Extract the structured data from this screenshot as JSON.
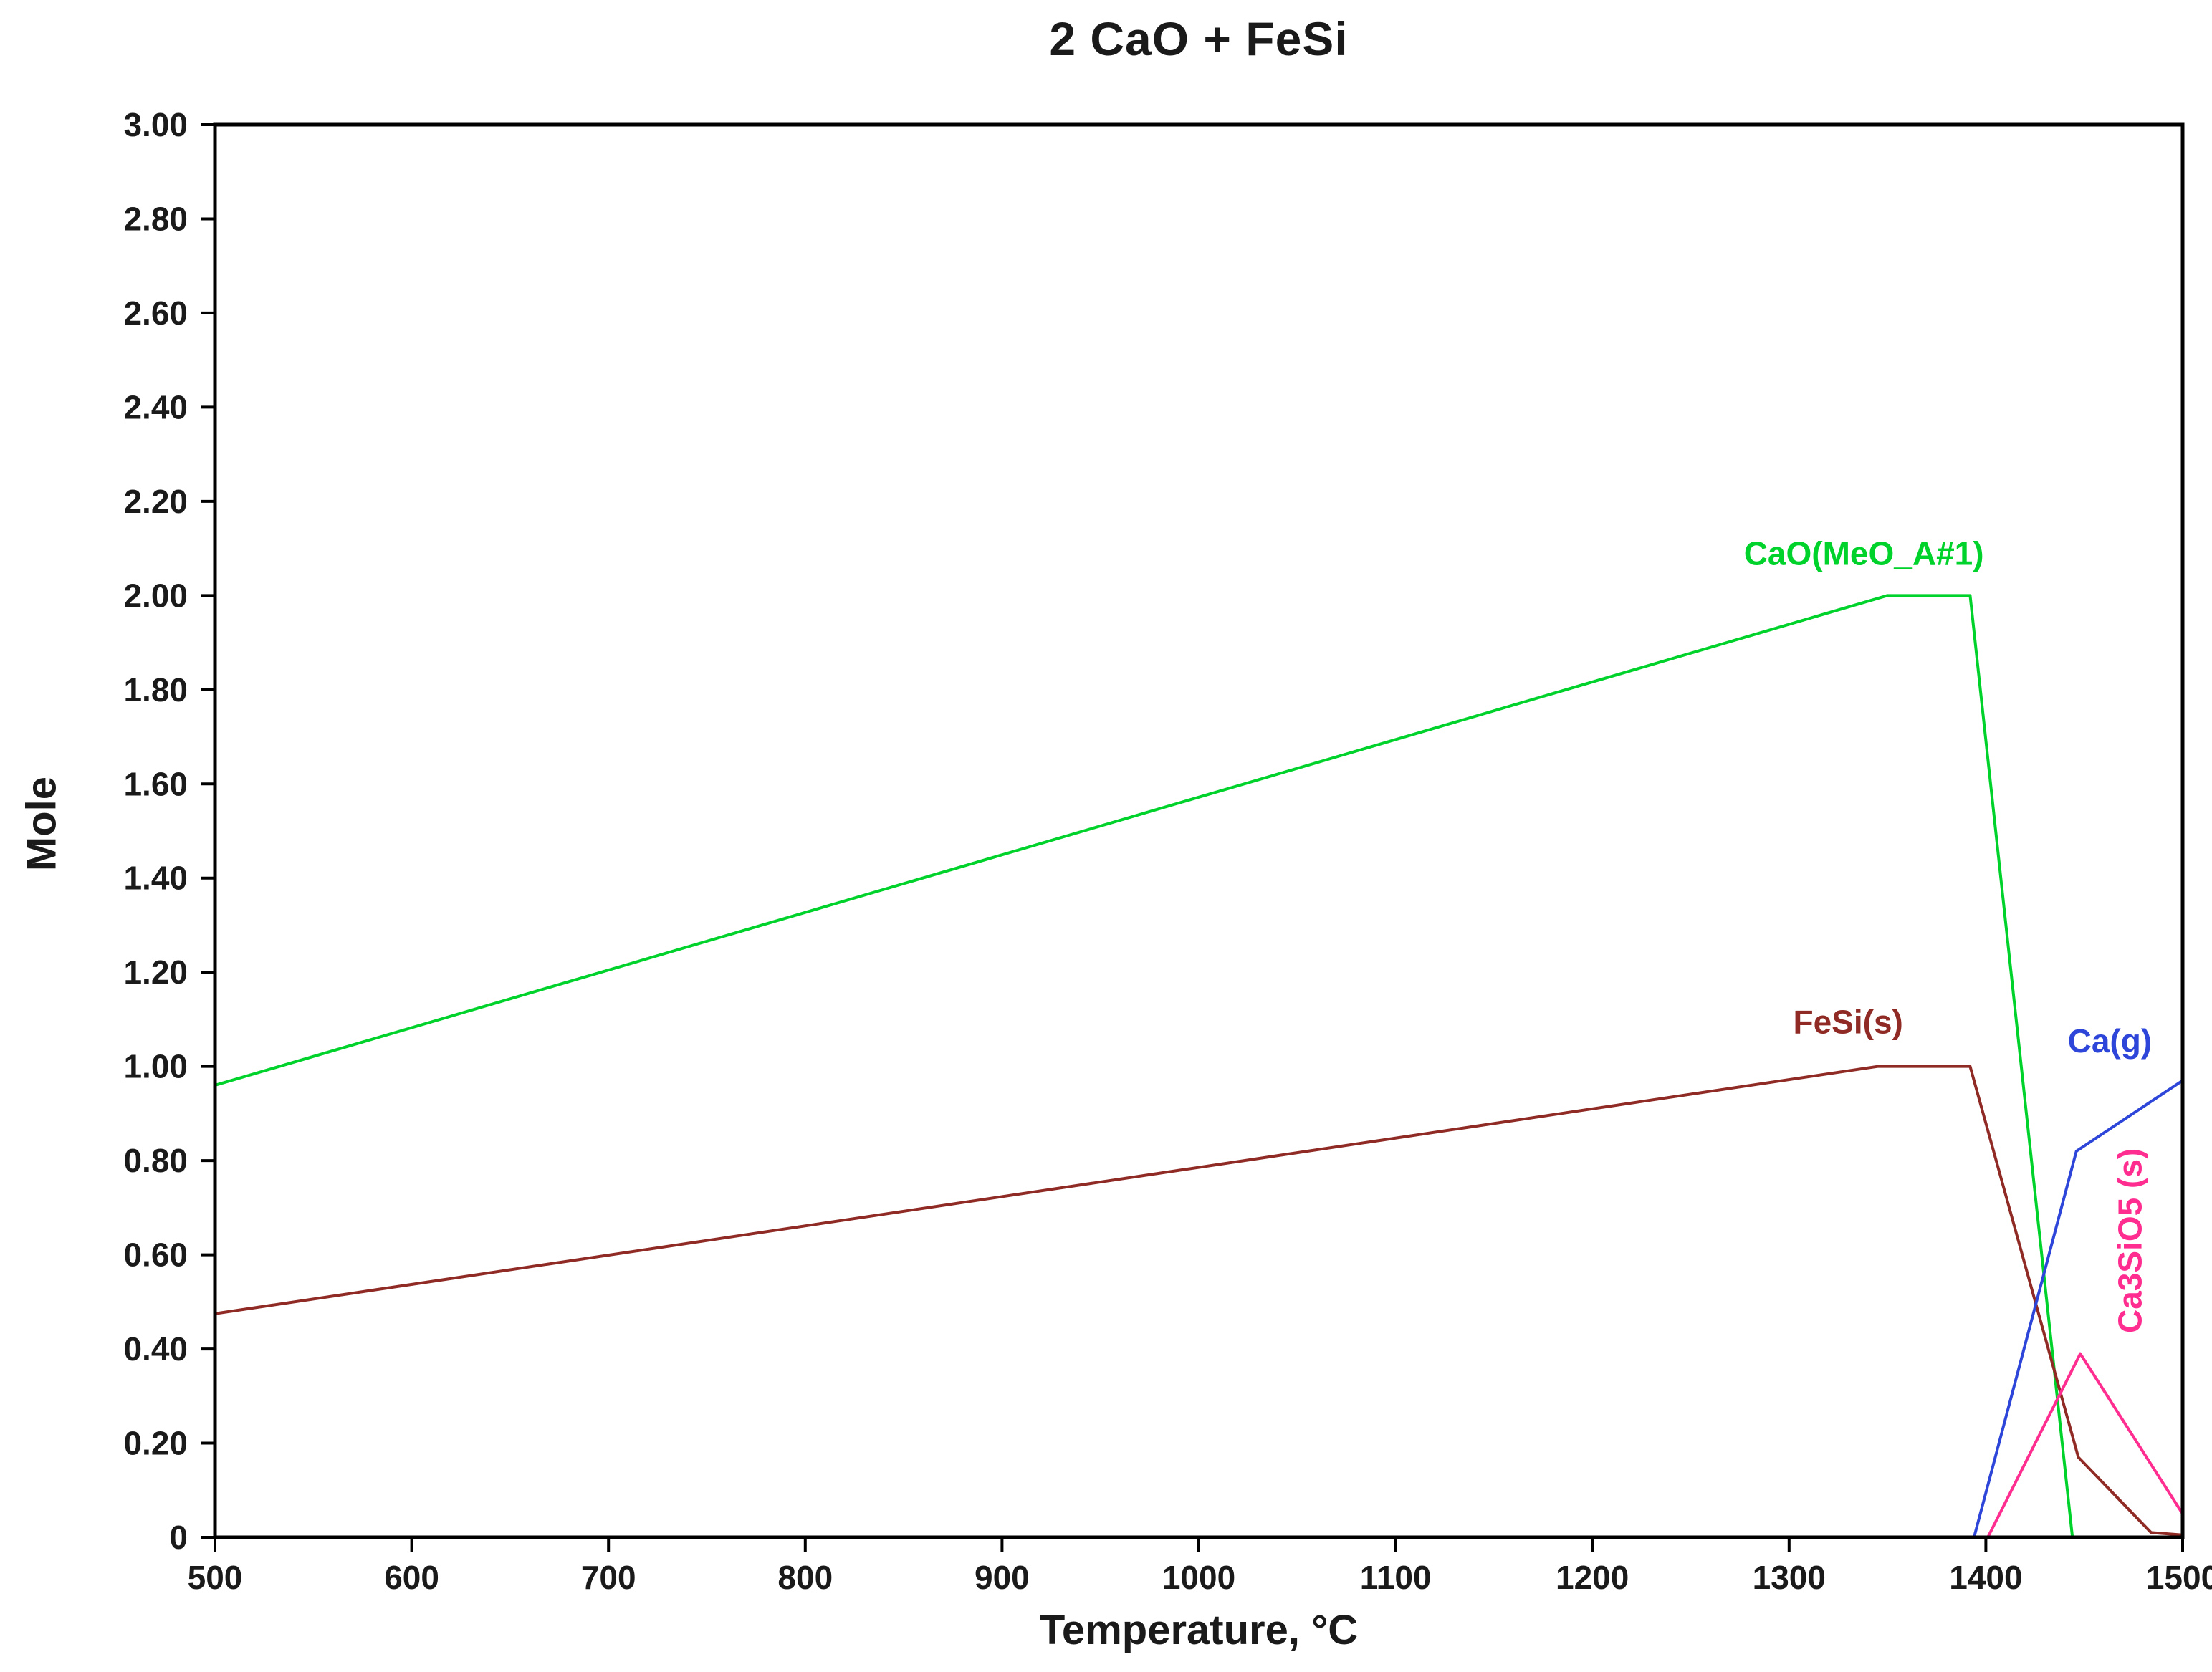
{
  "chart_data": {
    "type": "line",
    "title": "2 CaO + FeSi",
    "xlabel": "Temperature, °C",
    "ylabel": "Mole",
    "xlim": [
      500,
      1500
    ],
    "ylim": [
      0,
      3.0
    ],
    "grid": false,
    "legend": "inline-series-labels",
    "axis_color": "#000000",
    "tick_label_color": "#1a1a1a",
    "x_ticks": [
      500,
      600,
      700,
      800,
      900,
      1000,
      1100,
      1200,
      1300,
      1400,
      1500
    ],
    "x_tick_labels": [
      "500",
      "600",
      "700",
      "800",
      "900",
      "1000",
      "1100",
      "1200",
      "1300",
      "1400",
      "1500"
    ],
    "y_ticks": [
      0,
      0.2,
      0.4,
      0.6,
      0.8,
      1.0,
      1.2,
      1.4,
      1.6,
      1.8,
      2.0,
      2.2,
      2.4,
      2.6,
      2.8,
      3.0
    ],
    "y_tick_labels": [
      "0",
      "0.20",
      "0.40",
      "0.60",
      "0.80",
      "1.00",
      "1.20",
      "1.40",
      "1.60",
      "1.80",
      "2.00",
      "2.20",
      "2.40",
      "2.60",
      "2.80",
      "3.00"
    ],
    "series": [
      {
        "name": "CaO(MeO_A#1)",
        "color": "#00d22c",
        "points": [
          [
            500,
            0.96
          ],
          [
            1350,
            2.0
          ],
          [
            1392,
            2.0
          ],
          [
            1444,
            0.0
          ],
          [
            1500,
            0.0
          ]
        ],
        "label": {
          "text": "CaO(MeO_A#1)",
          "x": 1338,
          "y": 2.065,
          "rotate": 0,
          "anchor": "middle"
        }
      },
      {
        "name": "FeSi(s)",
        "color": "#8f2a25",
        "points": [
          [
            500,
            0.475
          ],
          [
            1345,
            1.0
          ],
          [
            1392,
            1.0
          ],
          [
            1447,
            0.17
          ],
          [
            1484,
            0.01
          ],
          [
            1500,
            0.005
          ]
        ],
        "label": {
          "text": "FeSi(s)",
          "x": 1330,
          "y": 1.07,
          "rotate": 0,
          "anchor": "middle"
        }
      },
      {
        "name": "Ca(g)",
        "color": "#2d46d9",
        "points": [
          [
            500,
            0.0
          ],
          [
            1394,
            0.0
          ],
          [
            1446,
            0.82
          ],
          [
            1500,
            0.97
          ]
        ],
        "label": {
          "text": "Ca(g)",
          "x": 1463,
          "y": 1.03,
          "rotate": 0,
          "anchor": "middle"
        }
      },
      {
        "name": "Ca3SiO5(s)",
        "color": "#ff2d90",
        "points": [
          [
            500,
            0.0
          ],
          [
            1401,
            0.0
          ],
          [
            1448,
            0.39
          ],
          [
            1500,
            0.05
          ]
        ],
        "label": {
          "text": "Ca3SiO5 (s)",
          "x": 1479,
          "y": 0.63,
          "rotate": -90,
          "anchor": "middle"
        }
      }
    ]
  }
}
